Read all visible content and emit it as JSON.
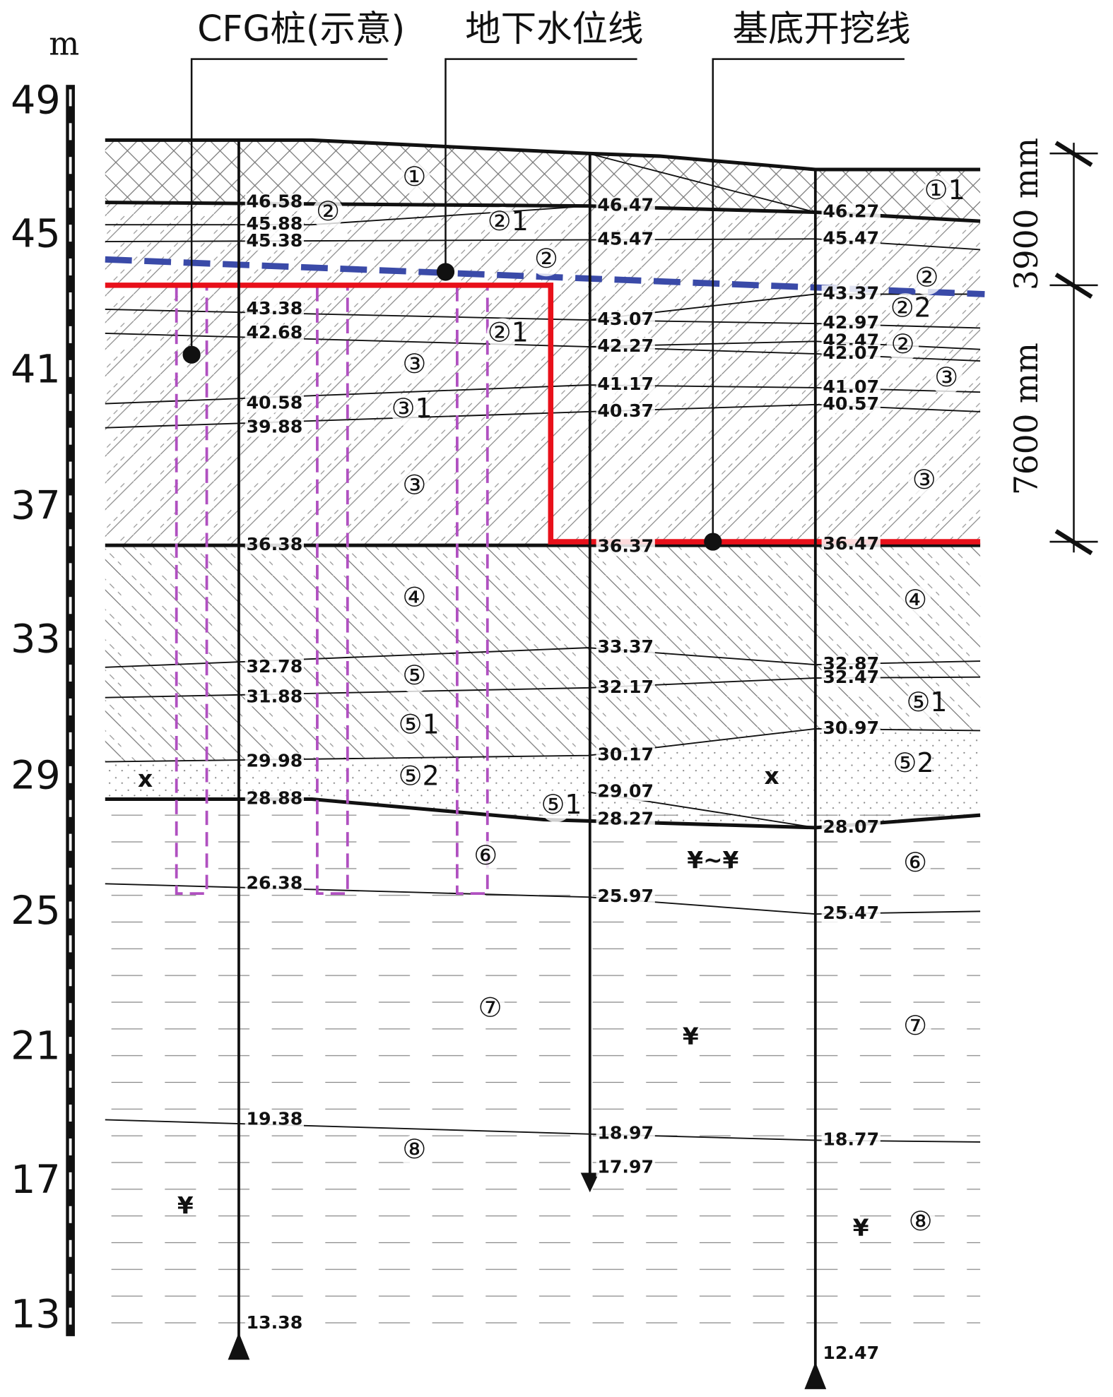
{
  "unit": "m",
  "scale_labels": [
    "49",
    "45",
    "41",
    "37",
    "33",
    "29",
    "25",
    "21",
    "17",
    "13"
  ],
  "callouts": [
    "CFG桩(示意)",
    "地下水位线",
    "基底开挖线"
  ],
  "dimensions": [
    "3900 mm",
    "7600 mm"
  ],
  "boreholes": [
    {
      "labels": [
        "46.58",
        "45.88",
        "45.38",
        "43.38",
        "42.68",
        "40.58",
        "39.88",
        "36.38",
        "32.78",
        "31.88",
        "29.98",
        "28.88",
        "26.38",
        "19.38",
        "13.38"
      ]
    },
    {
      "labels": [
        "46.47",
        "45.47",
        "43.07",
        "42.27",
        "41.17",
        "40.37",
        "36.37",
        "33.37",
        "32.17",
        "30.17",
        "29.07",
        "28.27",
        "25.97",
        "18.97",
        "17.97"
      ]
    },
    {
      "labels": [
        "46.27",
        "45.47",
        "43.37",
        "42.97",
        "42.47",
        "42.07",
        "41.07",
        "40.57",
        "36.47",
        "32.87",
        "32.47",
        "30.97",
        "28.07",
        "25.47",
        "18.77",
        "12.47"
      ]
    }
  ],
  "layers": [
    "①",
    "②",
    "②1",
    "②",
    "②1",
    "③",
    "③1",
    "③",
    "④",
    "⑤",
    "⑤1",
    "⑤2",
    "⑤1",
    "⑥",
    "⑦",
    "⑧",
    "①1",
    "②",
    "②2",
    "②",
    "③",
    "③",
    "④",
    "⑤1",
    "⑤2",
    "⑥",
    "⑦",
    "⑧"
  ],
  "symbols": [
    "x",
    "x",
    "¥~¥",
    "¥",
    "¥",
    "¥"
  ]
}
